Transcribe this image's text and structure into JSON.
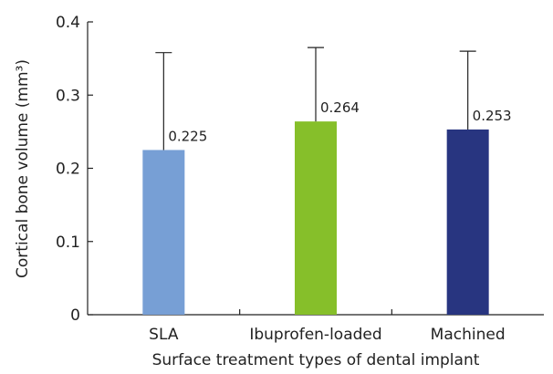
{
  "chart_data": {
    "type": "bar",
    "title": "",
    "xlabel": "Surface treatment types of dental implant",
    "ylabel": "Cortical bone volume (mm³)",
    "ylim": [
      0,
      0.4
    ],
    "yticks": [
      0,
      0.1,
      0.2,
      0.3,
      0.4
    ],
    "ytick_labels": [
      "0",
      "0.1",
      "0.2",
      "0.3",
      "0.4"
    ],
    "grid": false,
    "legend": "none",
    "categories": [
      "SLA",
      "Ibuprofen-loaded",
      "Machined"
    ],
    "values": [
      0.225,
      0.264,
      0.253
    ],
    "value_labels": [
      "0.225",
      "0.264",
      "0.253"
    ],
    "error_upper": [
      0.358,
      0.365,
      0.36
    ],
    "colors": [
      "#779fd5",
      "#86bf2a",
      "#283580"
    ]
  }
}
